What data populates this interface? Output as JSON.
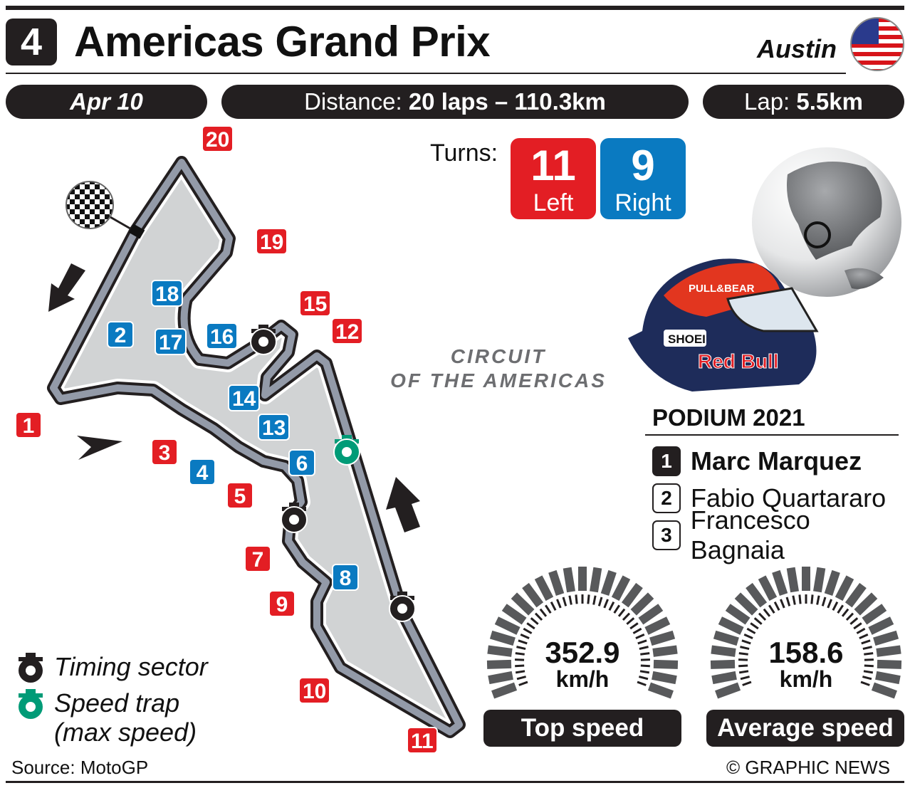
{
  "header": {
    "round": "4",
    "title": "Americas Grand Prix",
    "city": "Austin",
    "flag": "usa-flag-icon"
  },
  "info": {
    "date": "Apr 10",
    "distance_label": "Distance: ",
    "distance_value": "20 laps – 110.3km",
    "lap_label": "Lap: ",
    "lap_value": "5.5km"
  },
  "turns": {
    "label": "Turns:",
    "left_count": "11",
    "left_label": "Left",
    "right_count": "9",
    "right_label": "Right"
  },
  "circuit_name": [
    "CIRCUIT",
    "OF THE AMERICAS"
  ],
  "turn_markers": {
    "left": [
      "1",
      "3",
      "5",
      "7",
      "9",
      "10",
      "11",
      "12",
      "15",
      "19",
      "20"
    ],
    "right": [
      "2",
      "4",
      "6",
      "8",
      "13",
      "14",
      "16",
      "17",
      "18"
    ]
  },
  "podium": {
    "title": "PODIUM 2021",
    "riders": [
      {
        "pos": "1",
        "name": "Marc Marquez"
      },
      {
        "pos": "2",
        "name": "Fabio Quartararo"
      },
      {
        "pos": "3",
        "name": "Francesco Bagnaia"
      }
    ]
  },
  "speeds": {
    "top": {
      "value": "352.9",
      "unit": "km/h",
      "label": "Top speed"
    },
    "average": {
      "value": "158.6",
      "unit": "km/h",
      "label": "Average speed"
    }
  },
  "helmet_text": [
    "PULL&BEAR",
    "SHOEI",
    "Red Bull"
  ],
  "legend": {
    "timing": "Timing sector",
    "speed_trap": "Speed trap",
    "speed_trap_sub": "(max speed)"
  },
  "footer": {
    "source": "Source: MotoGP",
    "credit": "© GRAPHIC NEWS"
  },
  "colors": {
    "left": "#e31e24",
    "right": "#0a7ac1",
    "speed_trap": "#009b77",
    "dark": "#231f20"
  }
}
